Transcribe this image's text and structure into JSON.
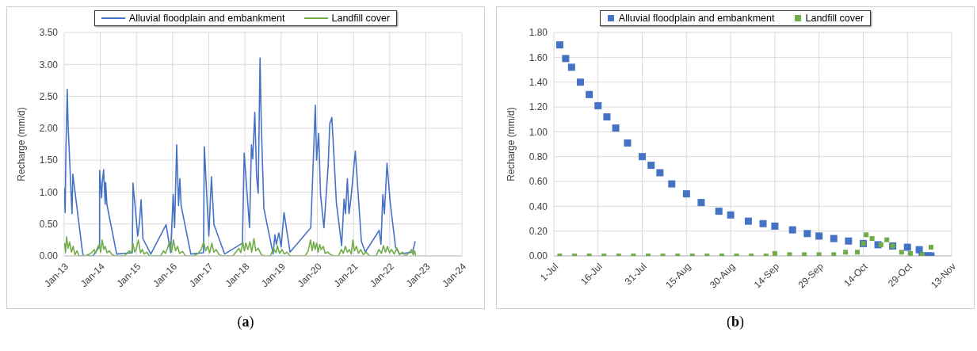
{
  "chart_data": [
    {
      "type": "line",
      "ylabel": "Recharge (mm/d)",
      "legend": "top",
      "grid": true,
      "line_style": "solid",
      "annotations": [
        "(a)"
      ],
      "xlim": [
        "2013-01",
        "2024-01"
      ],
      "xticks": [
        {
          "value": "2013-01",
          "label": "Jan-13"
        },
        {
          "value": "2014-01",
          "label": "Jan-14"
        },
        {
          "value": "2015-01",
          "label": "Jan-15"
        },
        {
          "value": "2016-01",
          "label": "Jan-16"
        },
        {
          "value": "2017-01",
          "label": "Jan-17"
        },
        {
          "value": "2018-01",
          "label": "Jan-18"
        },
        {
          "value": "2019-01",
          "label": "Jan-19"
        },
        {
          "value": "2020-01",
          "label": "Jan-20"
        },
        {
          "value": "2021-01",
          "label": "Jan-21"
        },
        {
          "value": "2022-01",
          "label": "Jan-22"
        },
        {
          "value": "2023-01",
          "label": "Jan-23"
        },
        {
          "value": "2024-01",
          "label": "Jan-24"
        }
      ],
      "ylim": [
        0,
        3.5
      ],
      "yticks": [
        {
          "value": 0,
          "label": "0.00"
        },
        {
          "value": 0.5,
          "label": "0.50"
        },
        {
          "value": 1,
          "label": "1.00"
        },
        {
          "value": 1.5,
          "label": "1.50"
        },
        {
          "value": 2,
          "label": "2.00"
        },
        {
          "value": 2.5,
          "label": "2.50"
        },
        {
          "value": 3,
          "label": "3.00"
        },
        {
          "value": 3.5,
          "label": "3.50"
        }
      ],
      "series": [
        {
          "name": "Alluvial floodplain and embankment",
          "color": "#4472c4",
          "x": [
            "2013-01-01",
            "2013-01-11",
            "2013-01-17",
            "2013-02-01",
            "2013-02-09",
            "2013-03-21",
            "2013-03-29",
            "2013-07-05",
            "2013-07-15",
            "2013-10-19",
            "2013-12-24",
            "2013-12-25",
            "2014-01-14",
            "2014-01-21",
            "2014-02-03",
            "2014-02-19",
            "2014-02-24",
            "2014-03-08",
            "2014-06-15",
            "2014-11-20",
            "2014-11-27",
            "2015-01-14",
            "2015-02-01",
            "2015-02-17",
            "2015-03-07",
            "2015-05-26",
            "2015-10-27",
            "2015-12-12",
            "2016-01-07",
            "2016-01-21",
            "2016-02-11",
            "2016-03-01",
            "2016-03-14",
            "2016-03-27",
            "2016-07-03",
            "2016-11-08",
            "2016-11-16",
            "2017-01-01",
            "2017-01-27",
            "2017-02-22",
            "2017-06-09",
            "2017-12-06",
            "2017-12-24",
            "2018-02-16",
            "2018-03-07",
            "2018-03-20",
            "2018-04-10",
            "2018-04-28",
            "2018-05-14",
            "2018-06-02",
            "2018-06-15",
            "2018-07-11",
            "2018-10-12",
            "2018-10-30",
            "2018-11-13",
            "2018-12-09",
            "2019-01-01",
            "2019-01-30",
            "2019-04-01",
            "2019-10-27",
            "2019-11-14",
            "2019-12-12",
            "2019-12-25",
            "2020-01-15",
            "2020-02-03",
            "2020-03-08",
            "2020-04-20",
            "2020-05-06",
            "2020-05-27",
            "2020-06-16",
            "2020-07-12",
            "2020-09-03",
            "2020-09-27",
            "2020-10-12",
            "2020-10-31",
            "2020-11-16",
            "2020-12-04",
            "2021-01-19",
            "2021-03-21",
            "2021-04-30",
            "2021-09-17",
            "2021-10-05",
            "2021-10-24",
            "2021-11-09",
            "2021-12-05",
            "2022-01-07",
            "2022-03-01",
            "2022-04-10",
            "2022-08-20",
            "2022-09-16"
          ],
          "values": [
            1.06,
            0.68,
            1.52,
            2.61,
            2.07,
            0.66,
            1.28,
            0.06,
            0,
            0,
            0.15,
            1.34,
            0.91,
            1.15,
            1.35,
            0.81,
            1.15,
            0.81,
            0.03,
            0.05,
            1.14,
            0.31,
            0.53,
            0.88,
            0.27,
            0.03,
            0.49,
            0.05,
            0.96,
            0.44,
            1.74,
            0.79,
            1.21,
            0.79,
            0.03,
            0.05,
            1.71,
            0.31,
            1.24,
            0.49,
            0.03,
            0.2,
            1.61,
            0.44,
            1.74,
            1.52,
            2.25,
            1.25,
            0.98,
            3.1,
            2.03,
            0.74,
            0.03,
            0.33,
            0.18,
            0.36,
            0.14,
            0.68,
            0.06,
            0.44,
            1.17,
            2.36,
            1.5,
            1.92,
            0.96,
            0.44,
            1.41,
            2.07,
            2.17,
            1.6,
            0.83,
            0.16,
            0.89,
            0.66,
            1.21,
            0.66,
            0.87,
            1.64,
            0.23,
            0.06,
            0.4,
            0.18,
            0.96,
            0.66,
            1.45,
            0.83,
            0.14,
            0.03,
            0.06,
            0.23
          ]
        },
        {
          "name": "Landfill cover",
          "color": "#70ad47",
          "x": [
            "2013-01-05",
            "2013-01-15",
            "2013-01-25",
            "2013-02-10",
            "2013-02-25",
            "2013-03-15",
            "2013-04-01",
            "2013-04-20",
            "2013-05-10",
            "2013-06-01",
            "2013-08-01",
            "2013-09-15",
            "2013-10-10",
            "2013-11-01",
            "2013-11-15",
            "2013-12-01",
            "2013-12-20",
            "2014-01-05",
            "2014-01-20",
            "2014-02-05",
            "2014-02-20",
            "2014-03-10",
            "2014-04-01",
            "2014-05-01",
            "2014-06-01",
            "2014-09-01",
            "2014-10-01",
            "2014-10-20",
            "2014-11-10",
            "2014-11-25",
            "2014-12-15",
            "2015-01-01",
            "2015-01-20",
            "2015-02-10",
            "2015-03-01",
            "2015-03-20",
            "2015-04-15",
            "2015-05-15",
            "2015-09-01",
            "2015-10-01",
            "2015-10-20",
            "2015-11-10",
            "2015-12-01",
            "2015-12-20",
            "2016-01-10",
            "2016-01-30",
            "2016-02-20",
            "2016-03-10",
            "2016-04-10",
            "2016-05-10",
            "2016-08-01",
            "2016-09-15",
            "2016-10-15",
            "2016-11-10",
            "2016-11-30",
            "2016-12-20",
            "2017-01-10",
            "2017-02-01",
            "2017-02-20",
            "2017-03-15",
            "2017-04-15",
            "2017-05-15",
            "2017-09-01",
            "2017-10-01",
            "2017-11-01",
            "2017-11-20",
            "2017-12-10",
            "2017-12-25",
            "2018-01-10",
            "2018-01-30",
            "2018-02-20",
            "2018-03-10",
            "2018-04-01",
            "2018-04-20",
            "2018-05-15",
            "2018-06-15",
            "2018-07-15",
            "2018-09-15",
            "2018-10-15",
            "2018-11-10",
            "2018-11-25",
            "2018-12-15",
            "2019-01-10",
            "2019-02-01",
            "2019-03-01",
            "2019-04-01",
            "2019-09-01",
            "2019-10-01",
            "2019-10-25",
            "2019-11-10",
            "2019-11-25",
            "2019-12-10",
            "2019-12-25",
            "2020-01-10",
            "2020-01-25",
            "2020-02-10",
            "2020-03-01",
            "2020-03-20",
            "2020-04-15",
            "2020-05-15",
            "2020-06-15",
            "2020-08-01",
            "2020-09-01",
            "2020-09-20",
            "2020-10-10",
            "2020-10-30",
            "2020-11-20",
            "2020-12-10",
            "2020-12-25",
            "2021-01-10",
            "2021-01-30",
            "2021-02-20",
            "2021-03-15",
            "2021-04-10",
            "2021-05-10",
            "2021-06-10",
            "2021-08-15",
            "2021-09-15",
            "2021-10-10",
            "2021-10-30",
            "2021-11-20",
            "2021-12-10",
            "2021-12-30",
            "2022-01-20",
            "2022-02-15",
            "2022-03-15",
            "2022-04-10",
            "2022-05-10",
            "2022-06-10",
            "2022-07-15",
            "2022-08-10",
            "2022-08-25",
            "2022-09-10",
            "2022-09-20"
          ],
          "values": [
            0.2,
            0.05,
            0.3,
            0.12,
            0.22,
            0.06,
            0.15,
            0.02,
            0.08,
            0,
            0,
            0.03,
            0.06,
            0.1,
            0.04,
            0.12,
            0.18,
            0.06,
            0.25,
            0.1,
            0.15,
            0.05,
            0.08,
            0.02,
            0,
            0,
            0.05,
            0.08,
            0.04,
            0.2,
            0.06,
            0.12,
            0.25,
            0.05,
            0.1,
            0.03,
            0.06,
            0,
            0,
            0.08,
            0.04,
            0.12,
            0.22,
            0.06,
            0.25,
            0.08,
            0.15,
            0.04,
            0.07,
            0,
            0,
            0.04,
            0.1,
            0.22,
            0.08,
            0.15,
            0.05,
            0.2,
            0.06,
            0.1,
            0.02,
            0,
            0,
            0.06,
            0.12,
            0.05,
            0.22,
            0.08,
            0.2,
            0.1,
            0.22,
            0.06,
            0.27,
            0.08,
            0.12,
            0.02,
            0,
            0,
            0.12,
            0.05,
            0.16,
            0.04,
            0.1,
            0.03,
            0.06,
            0,
            0,
            0.08,
            0.25,
            0.08,
            0.22,
            0.1,
            0.2,
            0.06,
            0.18,
            0.1,
            0.15,
            0.04,
            0.06,
            0.02,
            0,
            0,
            0.1,
            0.04,
            0.15,
            0.06,
            0.1,
            0.03,
            0.25,
            0.08,
            0.15,
            0.04,
            0.1,
            0.02,
            0.06,
            0,
            0,
            0.1,
            0.04,
            0.16,
            0.06,
            0.15,
            0.05,
            0.1,
            0.03,
            0.12,
            0.02,
            0.06,
            0,
            0.05,
            0.1,
            0.02,
            0.08,
            0
          ]
        }
      ]
    },
    {
      "type": "scatter",
      "marker": "square",
      "ylabel": "Recharge (mm/d)",
      "legend": "top",
      "grid": true,
      "annotations": [
        "(b)"
      ],
      "xlim": [
        "--07-01",
        "--11-13"
      ],
      "xticks": [
        {
          "value": "--07-01",
          "label": "1-Jul"
        },
        {
          "value": "--07-16",
          "label": "16-Jul"
        },
        {
          "value": "--07-31",
          "label": "31-Jul"
        },
        {
          "value": "--08-15",
          "label": "15-Aug"
        },
        {
          "value": "--08-30",
          "label": "30-Aug"
        },
        {
          "value": "--09-14",
          "label": "14-Sep"
        },
        {
          "value": "--09-29",
          "label": "29-Sep"
        },
        {
          "value": "--10-14",
          "label": "14-Oct"
        },
        {
          "value": "--10-29",
          "label": "29-Oct"
        },
        {
          "value": "--11-13",
          "label": "13-Nov"
        }
      ],
      "ylim": [
        0,
        1.8
      ],
      "yticks": [
        {
          "value": 0,
          "label": "0.00"
        },
        {
          "value": 0.2,
          "label": "0.20"
        },
        {
          "value": 0.4,
          "label": "0.40"
        },
        {
          "value": 0.6,
          "label": "0.60"
        },
        {
          "value": 0.8,
          "label": "0.80"
        },
        {
          "value": 1,
          "label": "1.00"
        },
        {
          "value": 1.2,
          "label": "1.20"
        },
        {
          "value": 1.4,
          "label": "1.40"
        },
        {
          "value": 1.6,
          "label": "1.60"
        },
        {
          "value": 1.8,
          "label": "1.80"
        }
      ],
      "series": [
        {
          "name": "Alluvial floodplain and embankment",
          "color": "#4472c4",
          "x": [
            "--07-03",
            "--07-05",
            "--07-07",
            "--07-10",
            "--07-13",
            "--07-16",
            "--07-19",
            "--07-22",
            "--07-26",
            "--07-31",
            "--08-03",
            "--08-06",
            "--08-10",
            "--08-15",
            "--08-20",
            "--08-26",
            "--08-30",
            "--09-05",
            "--09-10",
            "--09-14",
            "--09-20",
            "--09-25",
            "--09-29",
            "--10-04",
            "--10-09",
            "--10-14",
            "--10-19",
            "--10-24",
            "--10-29",
            "--11-02",
            "--11-03",
            "--11-04",
            "--11-05",
            "--11-06"
          ],
          "values": [
            1.7,
            1.59,
            1.52,
            1.4,
            1.3,
            1.21,
            1.12,
            1.03,
            0.91,
            0.8,
            0.73,
            0.67,
            0.58,
            0.5,
            0.43,
            0.36,
            0.33,
            0.28,
            0.26,
            0.24,
            0.21,
            0.18,
            0.16,
            0.14,
            0.12,
            0.1,
            0.09,
            0.08,
            0.07,
            0.05,
            0,
            0,
            0,
            0
          ]
        },
        {
          "name": "Landfill cover",
          "color": "#70ad47",
          "x": [
            "--07-03",
            "--07-08",
            "--07-13",
            "--07-18",
            "--07-23",
            "--07-28",
            "--08-02",
            "--08-07",
            "--08-12",
            "--08-17",
            "--08-22",
            "--08-27",
            "--09-01",
            "--09-06",
            "--09-11",
            "--09-14",
            "--09-19",
            "--09-24",
            "--09-29",
            "--10-04",
            "--10-08",
            "--10-12",
            "--10-14",
            "--10-15",
            "--10-17",
            "--10-20",
            "--10-22",
            "--10-24",
            "--10-27",
            "--10-30",
            "--11-03",
            "--11-06"
          ],
          "values": [
            0,
            0,
            0,
            0,
            0,
            0,
            0,
            0,
            0,
            0,
            0,
            0,
            0,
            0,
            0,
            0.02,
            0.01,
            0.01,
            0.01,
            0.01,
            0.03,
            0.03,
            0.1,
            0.17,
            0.14,
            0.09,
            0.13,
            0.08,
            0.03,
            0.02,
            0.01,
            0.07
          ]
        }
      ]
    }
  ]
}
